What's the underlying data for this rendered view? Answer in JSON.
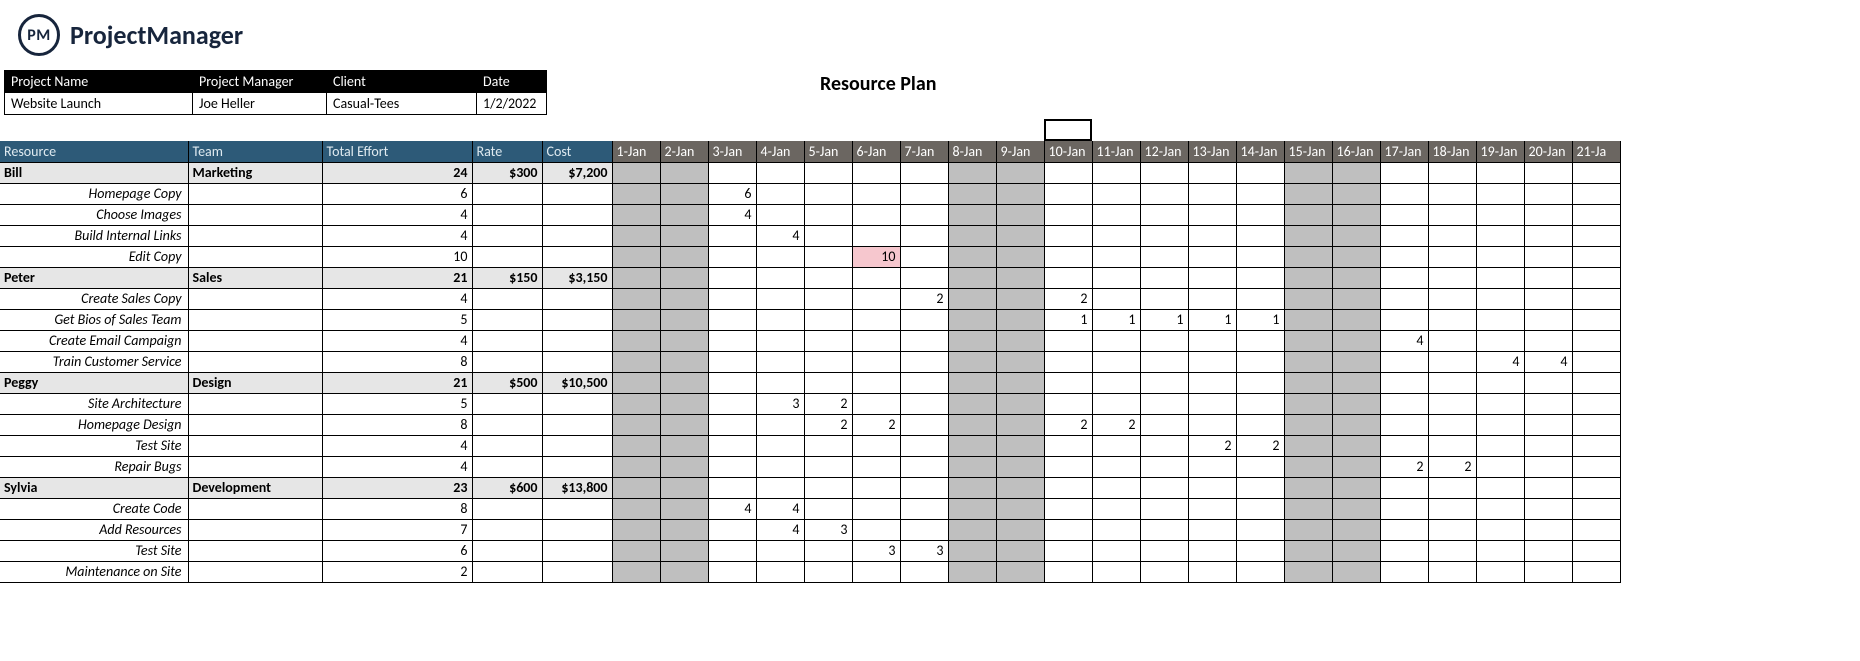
{
  "brand": {
    "badge": "PM",
    "name": "ProjectManager"
  },
  "page_title": "Resource Plan",
  "info": {
    "headers": [
      "Project Name",
      "Project Manager",
      "Client",
      "Date"
    ],
    "values": [
      "Website Launch",
      "Joe Heller",
      "Casual-Tees",
      "1/2/2022"
    ]
  },
  "columns": {
    "labels": [
      "Resource",
      "Team",
      "Total Effort",
      "Rate",
      "Cost"
    ],
    "dates": [
      "1-Jan",
      "2-Jan",
      "3-Jan",
      "4-Jan",
      "5-Jan",
      "6-Jan",
      "7-Jan",
      "8-Jan",
      "9-Jan",
      "10-Jan",
      "11-Jan",
      "12-Jan",
      "13-Jan",
      "14-Jan",
      "15-Jan",
      "16-Jan",
      "17-Jan",
      "18-Jan",
      "19-Jan",
      "20-Jan",
      "21-Ja"
    ],
    "weekend_indices": [
      0,
      1,
      7,
      8,
      14,
      15
    ]
  },
  "colors": {
    "header_resource_bg": "#2d5a78",
    "header_resource_fg": "#dfeaf0",
    "header_date_bg": "#6b6661",
    "header_date_fg": "#ffffff",
    "group_bg": "#e6e6e6",
    "weekend_bg": "#bfbfbf",
    "overalloc_bg": "#f6c7ce",
    "info_header_bg": "#000000",
    "info_header_fg": "#ffffff",
    "border": "#000000"
  },
  "selected_cell": {
    "date_index": 9,
    "row": -1
  },
  "groups": [
    {
      "resource": "Bill",
      "team": "Marketing",
      "effort": 24,
      "rate": "$300",
      "cost": "$7,200",
      "tasks": [
        {
          "name": "Homepage Copy",
          "effort": 6,
          "days": {
            "2": 6
          }
        },
        {
          "name": "Choose Images",
          "effort": 4,
          "days": {
            "2": 4
          }
        },
        {
          "name": "Build Internal Links",
          "effort": 4,
          "days": {
            "3": 4
          }
        },
        {
          "name": "Edit Copy",
          "effort": 10,
          "days": {
            "5": 10
          },
          "highlight": {
            "5": "pink"
          }
        }
      ]
    },
    {
      "resource": "Peter",
      "team": "Sales",
      "effort": 21,
      "rate": "$150",
      "cost": "$3,150",
      "tasks": [
        {
          "name": "Create Sales Copy",
          "effort": 4,
          "days": {
            "6": 2,
            "9": 2
          }
        },
        {
          "name": "Get Bios of Sales Team",
          "effort": 5,
          "days": {
            "9": 1,
            "10": 1,
            "11": 1,
            "12": 1,
            "13": 1
          }
        },
        {
          "name": "Create Email Campaign",
          "effort": 4,
          "days": {
            "16": 4
          }
        },
        {
          "name": "Train Customer Service",
          "effort": 8,
          "days": {
            "18": 4,
            "19": 4
          }
        }
      ]
    },
    {
      "resource": "Peggy",
      "team": "Design",
      "effort": 21,
      "rate": "$500",
      "cost": "$10,500",
      "tasks": [
        {
          "name": "Site Architecture",
          "effort": 5,
          "days": {
            "3": 3,
            "4": 2
          }
        },
        {
          "name": "Homepage Design",
          "effort": 8,
          "days": {
            "4": 2,
            "5": 2,
            "9": 2,
            "10": 2
          }
        },
        {
          "name": "Test Site",
          "effort": 4,
          "days": {
            "12": 2,
            "13": 2
          }
        },
        {
          "name": "Repair Bugs",
          "effort": 4,
          "days": {
            "16": 2,
            "17": 2
          }
        }
      ]
    },
    {
      "resource": "Sylvia",
      "team": "Development",
      "effort": 23,
      "rate": "$600",
      "cost": "$13,800",
      "tasks": [
        {
          "name": "Create Code",
          "effort": 8,
          "days": {
            "2": 4,
            "3": 4
          }
        },
        {
          "name": "Add Resources",
          "effort": 7,
          "days": {
            "3": 4,
            "4": 3
          }
        },
        {
          "name": "Test Site",
          "effort": 6,
          "days": {
            "5": 3,
            "6": 3
          }
        },
        {
          "name": "Maintenance on Site",
          "effort": 2,
          "days": {}
        }
      ]
    }
  ]
}
